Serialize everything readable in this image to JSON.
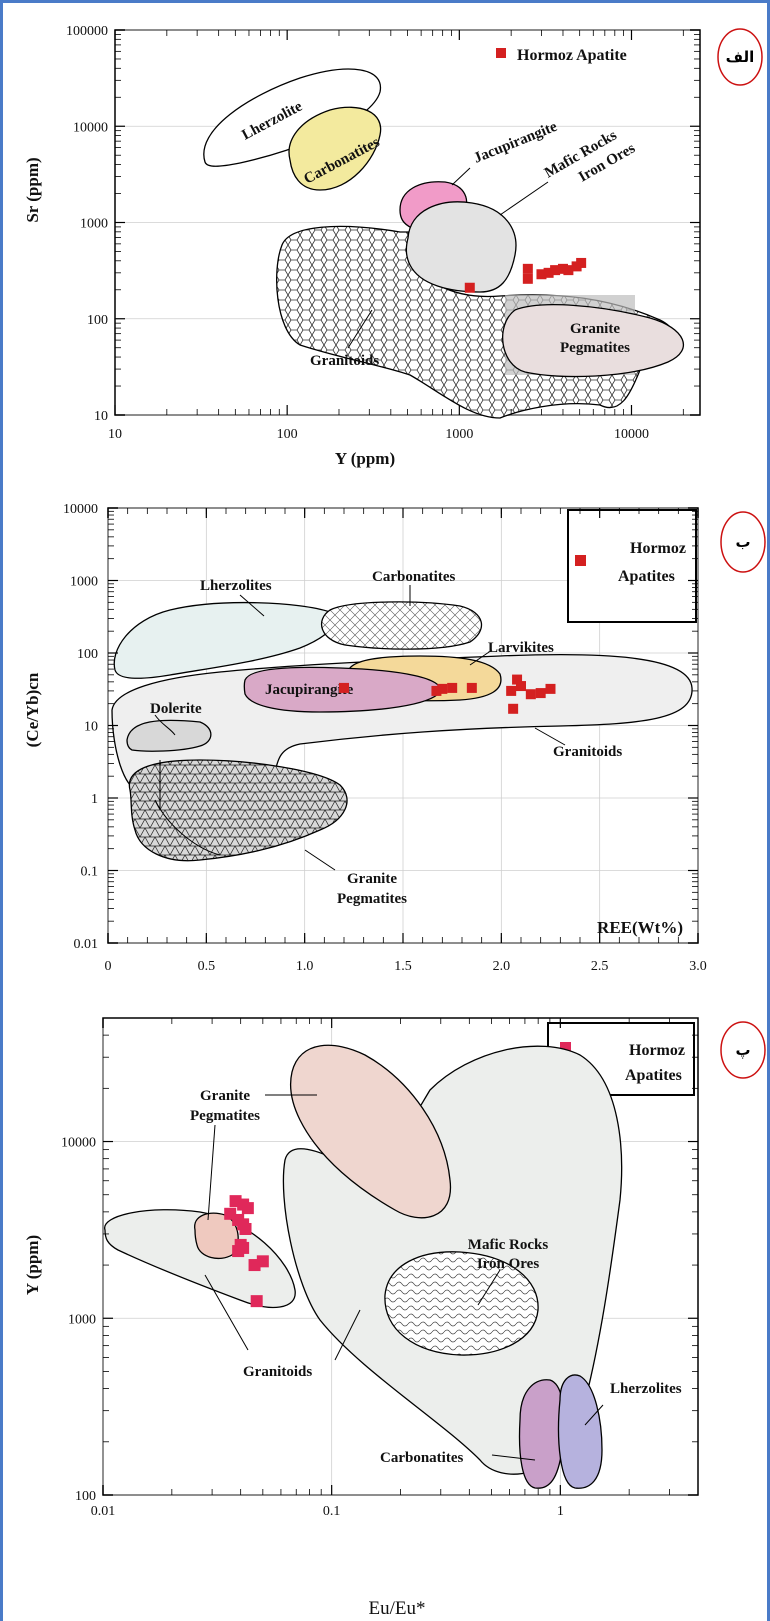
{
  "chart_data": [
    {
      "type": "scatter",
      "panel_tag": "الف",
      "xlabel": "Y (ppm)",
      "ylabel": "Sr (ppm)",
      "x_scale": "log",
      "y_scale": "log",
      "xlim": [
        10,
        25000
      ],
      "ylim": [
        10,
        100000
      ],
      "x_ticks": [
        "10",
        "100",
        "1000",
        "10000"
      ],
      "y_ticks": [
        "10",
        "100",
        "1000",
        "10000",
        "100000"
      ],
      "series": [
        {
          "name": "Hormoz Apatite",
          "color": "#d42020",
          "points": [
            [
              1150,
              210
            ],
            [
              2500,
              330
            ],
            [
              2500,
              260
            ],
            [
              3000,
              290
            ],
            [
              3300,
              300
            ],
            [
              3600,
              320
            ],
            [
              4000,
              330
            ],
            [
              4300,
              320
            ],
            [
              4800,
              350
            ],
            [
              5100,
              380
            ]
          ]
        }
      ],
      "regions": [
        "Lherzolite",
        "Carbonatites",
        "Jacupirangite",
        "Mafic Rocks",
        "Iron Ores",
        "Granitoids",
        "Granite",
        "Pegmatites"
      ]
    },
    {
      "type": "scatter",
      "panel_tag": "ب",
      "xlabel": "REE(Wt%)",
      "ylabel": "(Ce/Yb)cn",
      "x_scale": "linear",
      "y_scale": "log",
      "xlim": [
        0,
        3.0
      ],
      "ylim": [
        0.01,
        10000
      ],
      "x_ticks": [
        "0",
        "0.5",
        "1.0",
        "1.5",
        "2.0",
        "2.5",
        "3.0"
      ],
      "y_ticks": [
        "0.01",
        "0.1",
        "1",
        "10",
        "100",
        "1000",
        "10000"
      ],
      "series": [
        {
          "name": "Hormoz Apatites",
          "color": "#d42020",
          "points": [
            [
              1.2,
              33
            ],
            [
              1.67,
              30
            ],
            [
              1.7,
              32
            ],
            [
              1.75,
              33
            ],
            [
              1.85,
              33
            ],
            [
              2.05,
              30
            ],
            [
              2.06,
              17
            ],
            [
              2.08,
              43
            ],
            [
              2.1,
              35
            ],
            [
              2.15,
              27
            ],
            [
              2.2,
              28
            ],
            [
              2.25,
              32
            ]
          ]
        }
      ],
      "regions": [
        "Lherzolites",
        "Carbonatites",
        "Larvikites",
        "Jacupirangite",
        "Dolerite",
        "Granitoids",
        "Granite",
        "Pegmatites"
      ]
    },
    {
      "type": "scatter",
      "panel_tag": "پ",
      "xlabel": "Eu/Eu*",
      "ylabel": "Y (ppm)",
      "x_scale": "log",
      "y_scale": "log",
      "xlim": [
        0.01,
        4
      ],
      "ylim": [
        100,
        50000
      ],
      "x_ticks": [
        "0.01",
        "0.1",
        "1"
      ],
      "y_ticks": [
        "100",
        "1000",
        "10000"
      ],
      "series": [
        {
          "name": "Hormoz Apatites",
          "color": "#d42020",
          "points": [
            [
              0.038,
              4600
            ],
            [
              0.036,
              3900
            ],
            [
              0.041,
              4400
            ],
            [
              0.043,
              4200
            ],
            [
              0.039,
              3600
            ],
            [
              0.041,
              3400
            ],
            [
              0.042,
              3200
            ],
            [
              0.04,
              2600
            ],
            [
              0.039,
              2400
            ],
            [
              0.041,
              2500
            ],
            [
              0.046,
              2000
            ],
            [
              0.05,
              2100
            ],
            [
              0.047,
              1250
            ]
          ]
        }
      ],
      "regions": [
        "Granite",
        "Pegmatites",
        "Mafic Rocks",
        "Iron Ores",
        "Granitoids",
        "Carbonatites",
        "Lherzolites"
      ]
    }
  ],
  "legend": [
    "Hormoz Apatite",
    "Hormoz",
    "Apatites"
  ],
  "colors": {
    "frame": "#4a7bc8",
    "marker": "#d42020",
    "tag_circle": "#cc1111"
  }
}
